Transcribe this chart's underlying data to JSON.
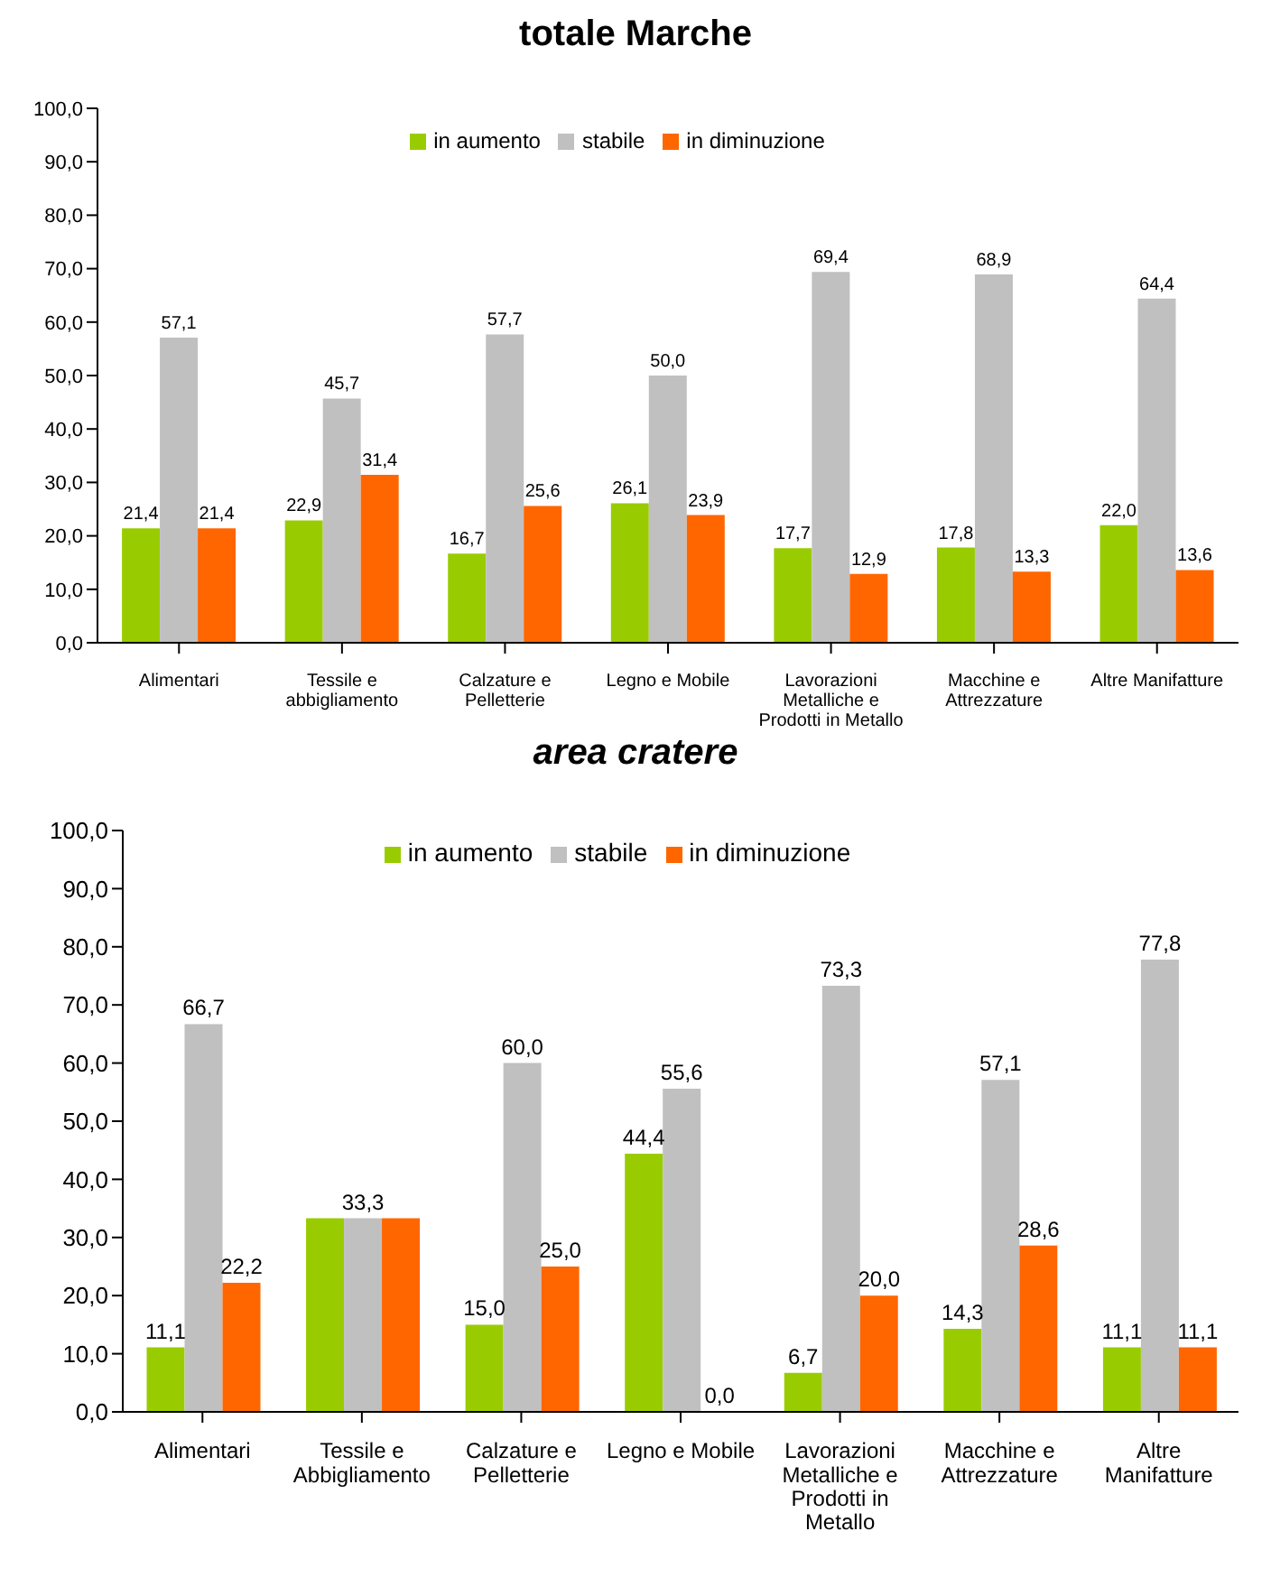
{
  "chart_data": [
    {
      "type": "bar",
      "title": "totale Marche",
      "categories": [
        "Alimentari",
        "Tessile e abbigliamento",
        "Calzature e Pelletterie",
        "Legno e Mobile",
        "Lavorazioni Metalliche e Prodotti in Metallo",
        "Macchine e Attrezzature",
        "Altre Manifatture"
      ],
      "series": [
        {
          "name": "in aumento",
          "color": "#99cc00",
          "values": [
            21.4,
            22.9,
            16.7,
            26.1,
            17.7,
            17.8,
            22.0
          ],
          "value_labels": [
            "21,4",
            "22,9",
            "16,7",
            "26,1",
            "17,7",
            "17,8",
            "22,0"
          ]
        },
        {
          "name": "stabile",
          "color": "#c0c0c0",
          "values": [
            57.1,
            45.7,
            57.7,
            50.0,
            69.4,
            68.9,
            64.4
          ],
          "value_labels": [
            "57,1",
            "45,7",
            "57,7",
            "50,0",
            "69,4",
            "68,9",
            "64,4"
          ]
        },
        {
          "name": "in diminuzione",
          "color": "#ff6600",
          "values": [
            21.4,
            31.4,
            25.6,
            23.9,
            12.9,
            13.3,
            13.6
          ],
          "value_labels": [
            "21,4",
            "31,4",
            "25,6",
            "23,9",
            "12,9",
            "13,3",
            "13,6"
          ]
        }
      ],
      "ylim": [
        0,
        100
      ],
      "yticks": [
        {
          "value": 0,
          "label": "0,0"
        },
        {
          "value": 10,
          "label": "10,0"
        },
        {
          "value": 20,
          "label": "20,0"
        },
        {
          "value": 30,
          "label": "30,0"
        },
        {
          "value": 40,
          "label": "40,0"
        },
        {
          "value": 50,
          "label": "50,0"
        },
        {
          "value": 60,
          "label": "60,0"
        },
        {
          "value": 70,
          "label": "70,0"
        },
        {
          "value": 80,
          "label": "80,0"
        },
        {
          "value": 90,
          "label": "90,0"
        },
        {
          "value": 100,
          "label": "100,0"
        }
      ],
      "grid": false,
      "legend": "top"
    },
    {
      "type": "bar",
      "title": "area cratere",
      "categories": [
        "Alimentari",
        "Tessile e Abbigliamento",
        "Calzature e Pelletterie",
        "Legno e Mobile",
        "Lavorazioni Metalliche e Prodotti in Metallo",
        "Macchine e Attrezzature",
        "Altre Manifatture"
      ],
      "series": [
        {
          "name": "in aumento",
          "color": "#99cc00",
          "values": [
            11.1,
            33.3,
            15.0,
            44.4,
            6.7,
            14.3,
            11.1
          ],
          "value_labels": [
            "11,1",
            null,
            "15,0",
            "44,4",
            "6,7",
            "14,3",
            "11,1"
          ]
        },
        {
          "name": "stabile",
          "color": "#c0c0c0",
          "values": [
            66.7,
            33.3,
            60.0,
            55.6,
            73.3,
            57.1,
            77.8
          ],
          "value_labels": [
            "66,7",
            "33,3",
            "60,0",
            "55,6",
            "73,3",
            "57,1",
            "77,8"
          ]
        },
        {
          "name": "in diminuzione",
          "color": "#ff6600",
          "values": [
            22.2,
            33.3,
            25.0,
            0.0,
            20.0,
            28.6,
            11.1
          ],
          "value_labels": [
            "22,2",
            null,
            "25,0",
            "0,0",
            "20,0",
            "28,6",
            "11,1"
          ]
        }
      ],
      "ylim": [
        0,
        100
      ],
      "yticks": [
        {
          "value": 0,
          "label": "0,0"
        },
        {
          "value": 10,
          "label": "10,0"
        },
        {
          "value": 20,
          "label": "20,0"
        },
        {
          "value": 30,
          "label": "30,0"
        },
        {
          "value": 40,
          "label": "40,0"
        },
        {
          "value": 50,
          "label": "50,0"
        },
        {
          "value": 60,
          "label": "60,0"
        },
        {
          "value": 70,
          "label": "70,0"
        },
        {
          "value": 80,
          "label": "80,0"
        },
        {
          "value": 90,
          "label": "90,0"
        },
        {
          "value": 100,
          "label": "100,0"
        }
      ],
      "grid": false,
      "legend": "top"
    }
  ]
}
